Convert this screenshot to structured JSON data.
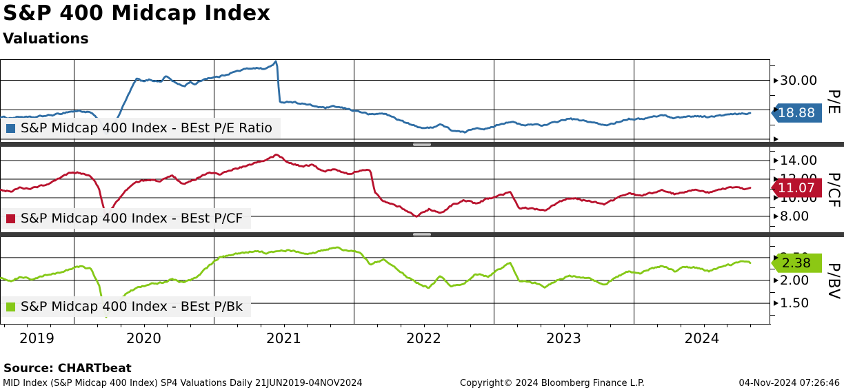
{
  "header": {
    "title": "S&P 400 Midcap Index",
    "subtitle": "Valuations"
  },
  "footer": {
    "source": "Source: CHARTbeat",
    "meta_left": "MID Index (S&P Midcap 400 Index) SP4 Valuations  Daily 21JUN2019-04NOV2024",
    "meta_center": "Copyright© 2024 Bloomberg Finance L.P.",
    "meta_right": "04-Nov-2024 07:26:46"
  },
  "x_axis": {
    "start_decimal_year": 2019.473,
    "end_decimal_year": 2024.84,
    "year_boundaries": [
      2020,
      2021,
      2022,
      2023,
      2024
    ],
    "year_labels": [
      "2019",
      "2020",
      "2021",
      "2022",
      "2023",
      "2024"
    ],
    "range_text": "21JUN2019-04NOV2024"
  },
  "chart_data": [
    {
      "type": "line",
      "panel": "P/E",
      "legend": "S&P Midcap 400 Index - BEst P/E Ratio",
      "axis_title": "P/E",
      "color": "#2e6da4",
      "last_value": 18.88,
      "last_value_label": "18.88",
      "value_box": {
        "bg": "#2e6da4",
        "text_color": "#ffffff"
      },
      "ylim": [
        9.05,
        37.14
      ],
      "gridlines": [
        30,
        20,
        10
      ],
      "yticks_labeled": [
        {
          "value": 30,
          "label": "30.00"
        }
      ],
      "yticks_unlabeled": [
        20,
        10
      ],
      "yticks_minor": [
        35,
        25,
        15
      ],
      "noise_amp": 0.45,
      "x": [
        2019.47,
        2019.55,
        2019.62,
        2019.7,
        2019.79,
        2019.87,
        2019.96,
        2020.04,
        2020.12,
        2020.18,
        2020.23,
        2020.29,
        2020.33,
        2020.37,
        2020.42,
        2020.45,
        2020.5,
        2020.54,
        2020.62,
        2020.66,
        2020.7,
        2020.75,
        2020.79,
        2020.83,
        2020.87,
        2020.92,
        2020.96,
        2021.04,
        2021.12,
        2021.21,
        2021.29,
        2021.37,
        2021.42,
        2021.45,
        2021.47,
        2021.54,
        2021.62,
        2021.7,
        2021.79,
        2021.87,
        2021.96,
        2022.04,
        2022.12,
        2022.21,
        2022.29,
        2022.37,
        2022.45,
        2022.54,
        2022.62,
        2022.7,
        2022.79,
        2022.87,
        2022.96,
        2023.04,
        2023.12,
        2023.21,
        2023.29,
        2023.37,
        2023.45,
        2023.54,
        2023.62,
        2023.7,
        2023.79,
        2023.87,
        2023.96,
        2024.04,
        2024.12,
        2024.21,
        2024.29,
        2024.37,
        2024.45,
        2024.54,
        2024.62,
        2024.7,
        2024.79,
        2024.84
      ],
      "values": [
        17.5,
        17.2,
        17.6,
        17.3,
        17.9,
        18.3,
        19.3,
        19.6,
        19.0,
        16.5,
        11.6,
        15.0,
        19.0,
        23.0,
        28.0,
        30.5,
        29.5,
        30.2,
        29.5,
        31.5,
        30.0,
        28.5,
        28.0,
        29.5,
        28.6,
        30.2,
        30.8,
        31.2,
        32.5,
        33.6,
        34.3,
        33.8,
        35.2,
        36.8,
        22.5,
        22.8,
        22.2,
        21.4,
        20.6,
        21.0,
        20.2,
        19.4,
        18.3,
        18.8,
        17.3,
        15.6,
        14.2,
        13.7,
        15.1,
        13.0,
        12.2,
        13.9,
        13.5,
        15.1,
        16.0,
        14.6,
        15.1,
        14.7,
        15.9,
        17.0,
        16.3,
        15.8,
        14.6,
        15.6,
        17.0,
        16.8,
        17.4,
        18.2,
        17.2,
        17.6,
        17.9,
        17.5,
        18.0,
        18.4,
        18.6,
        18.88
      ]
    },
    {
      "type": "line",
      "panel": "P/CF",
      "legend": "S&P Midcap 400 Index - BEst P/CF",
      "axis_title": "P/CF",
      "color": "#b8122d",
      "last_value": 11.07,
      "last_value_label": "11.07",
      "value_box": {
        "bg": "#b8122d",
        "text_color": "#ffffff"
      },
      "ylim": [
        6.3,
        15.48
      ],
      "gridlines": [
        14,
        12,
        10,
        8
      ],
      "yticks_labeled": [
        {
          "value": 14,
          "label": "14.00"
        },
        {
          "value": 12,
          "label": "12.00"
        },
        {
          "value": 10,
          "label": "10.00"
        },
        {
          "value": 8,
          "label": "8.00"
        }
      ],
      "yticks_unlabeled": [],
      "yticks_minor": [
        15,
        13,
        11,
        9,
        7
      ],
      "noise_amp": 0.16,
      "x": [
        2019.47,
        2019.55,
        2019.62,
        2019.7,
        2019.79,
        2019.87,
        2019.96,
        2020.04,
        2020.12,
        2020.18,
        2020.23,
        2020.29,
        2020.37,
        2020.45,
        2020.54,
        2020.62,
        2020.7,
        2020.79,
        2020.87,
        2020.96,
        2021.04,
        2021.12,
        2021.21,
        2021.29,
        2021.37,
        2021.45,
        2021.54,
        2021.62,
        2021.7,
        2021.79,
        2021.87,
        2021.96,
        2022.04,
        2022.12,
        2022.15,
        2022.21,
        2022.29,
        2022.37,
        2022.45,
        2022.54,
        2022.62,
        2022.7,
        2022.79,
        2022.87,
        2022.96,
        2023.04,
        2023.12,
        2023.18,
        2023.29,
        2023.37,
        2023.45,
        2023.54,
        2023.62,
        2023.7,
        2023.79,
        2023.87,
        2023.96,
        2024.04,
        2024.12,
        2024.21,
        2024.29,
        2024.37,
        2024.45,
        2024.54,
        2024.62,
        2024.7,
        2024.79,
        2024.84
      ],
      "values": [
        10.9,
        10.7,
        11.1,
        11.0,
        11.4,
        11.8,
        12.6,
        12.7,
        12.4,
        11.0,
        7.8,
        9.2,
        10.8,
        11.7,
        12.0,
        11.8,
        12.4,
        11.4,
        12.0,
        12.7,
        12.5,
        13.0,
        13.3,
        13.7,
        14.1,
        14.6,
        13.7,
        13.4,
        13.5,
        12.8,
        13.1,
        12.6,
        12.9,
        12.9,
        10.6,
        9.7,
        9.3,
        8.7,
        8.0,
        8.8,
        8.3,
        9.2,
        9.7,
        9.4,
        9.9,
        10.2,
        10.6,
        8.9,
        8.8,
        8.7,
        9.4,
        10.0,
        9.8,
        9.6,
        9.3,
        9.9,
        10.5,
        10.2,
        10.5,
        10.8,
        10.4,
        10.7,
        10.9,
        10.6,
        10.9,
        11.1,
        10.9,
        11.07
      ]
    },
    {
      "type": "line",
      "panel": "P/BV",
      "legend": "S&P Midcap 400 Index - BEst P/Bk",
      "axis_title": "P/BV",
      "color": "#85c817",
      "last_value": 2.38,
      "last_value_label": "2.38",
      "value_box": {
        "bg": "#8cc814",
        "text_color": "#000000"
      },
      "ylim": [
        1.05,
        2.95
      ],
      "gridlines": [
        2.5,
        2.0,
        1.5
      ],
      "yticks_labeled": [
        {
          "value": 2.5,
          "label": "2.50"
        },
        {
          "value": 2.0,
          "label": "2.00"
        },
        {
          "value": 1.5,
          "label": "1.50"
        }
      ],
      "yticks_unlabeled": [],
      "yticks_minor": [
        2.75,
        2.25,
        1.75,
        1.25
      ],
      "noise_amp": 0.032,
      "x": [
        2019.47,
        2019.55,
        2019.62,
        2019.7,
        2019.79,
        2019.87,
        2019.96,
        2020.04,
        2020.12,
        2020.18,
        2020.23,
        2020.29,
        2020.37,
        2020.45,
        2020.54,
        2020.62,
        2020.7,
        2020.79,
        2020.87,
        2020.96,
        2021.04,
        2021.12,
        2021.21,
        2021.29,
        2021.37,
        2021.45,
        2021.54,
        2021.62,
        2021.7,
        2021.79,
        2021.87,
        2021.96,
        2022.04,
        2022.12,
        2022.21,
        2022.29,
        2022.37,
        2022.45,
        2022.54,
        2022.62,
        2022.7,
        2022.79,
        2022.87,
        2022.96,
        2023.04,
        2023.12,
        2023.18,
        2023.29,
        2023.37,
        2023.45,
        2023.54,
        2023.62,
        2023.7,
        2023.79,
        2023.87,
        2023.96,
        2024.04,
        2024.12,
        2024.21,
        2024.29,
        2024.37,
        2024.45,
        2024.54,
        2024.62,
        2024.7,
        2024.79,
        2024.84
      ],
      "values": [
        2.06,
        2.0,
        2.08,
        2.02,
        2.1,
        2.15,
        2.24,
        2.3,
        2.25,
        1.9,
        1.2,
        1.45,
        1.7,
        1.85,
        1.92,
        1.95,
        2.02,
        1.95,
        2.05,
        2.3,
        2.5,
        2.55,
        2.6,
        2.65,
        2.6,
        2.63,
        2.66,
        2.62,
        2.58,
        2.67,
        2.72,
        2.65,
        2.62,
        2.35,
        2.45,
        2.3,
        2.1,
        1.95,
        1.83,
        2.1,
        1.87,
        1.92,
        2.15,
        2.08,
        2.25,
        2.38,
        2.0,
        1.95,
        1.85,
        2.0,
        2.1,
        2.08,
        2.02,
        1.9,
        2.05,
        2.2,
        2.15,
        2.25,
        2.32,
        2.2,
        2.3,
        2.28,
        2.2,
        2.3,
        2.35,
        2.42,
        2.38
      ]
    }
  ]
}
